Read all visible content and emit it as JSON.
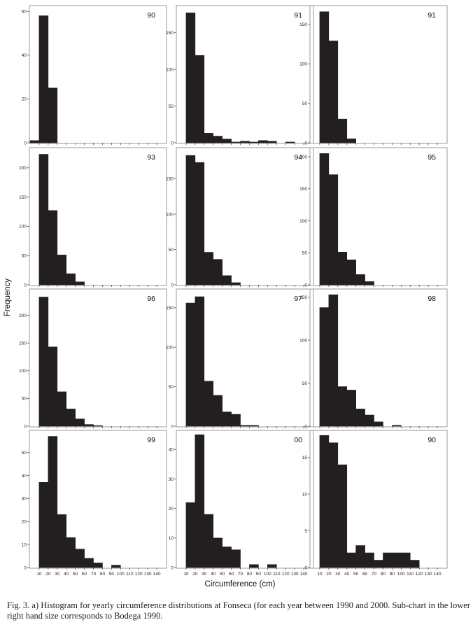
{
  "caption": "Fig. 3. a) Histogram for yearly circumference distributions at Fonseca (for each year between 1990 and 2000. Sub-chart in the lower right hand size corresponds to Bodega 1990.",
  "chart_data": {
    "type": "bar",
    "xlabel": "Circumference (cm)",
    "ylabel": "Frequency",
    "xlim": [
      0,
      150
    ],
    "bin_width": 10,
    "x_ticks": [
      10,
      20,
      30,
      40,
      50,
      60,
      70,
      80,
      90,
      100,
      110,
      120,
      130,
      140
    ],
    "grid": false,
    "panels": [
      {
        "label": "90",
        "ylim": [
          0,
          62
        ],
        "yticks": [
          0,
          20,
          40,
          60
        ],
        "bins": [
          [
            0,
            1
          ],
          [
            10,
            58
          ],
          [
            20,
            25
          ]
        ]
      },
      {
        "label": "91",
        "ylim": [
          0,
          185
        ],
        "yticks": [
          0,
          50,
          100,
          150
        ],
        "bins": [
          [
            10,
            177
          ],
          [
            20,
            119
          ],
          [
            30,
            13
          ],
          [
            40,
            9
          ],
          [
            50,
            5
          ],
          [
            60,
            1
          ],
          [
            70,
            2
          ],
          [
            80,
            1
          ],
          [
            90,
            3
          ],
          [
            100,
            2
          ],
          [
            110,
            0
          ],
          [
            120,
            1
          ]
        ]
      },
      {
        "label": "91",
        "ylim": [
          0,
          172
        ],
        "yticks": [
          0,
          50,
          100,
          150
        ],
        "bins": [
          [
            10,
            166
          ],
          [
            20,
            129
          ],
          [
            30,
            30
          ],
          [
            40,
            5
          ]
        ]
      },
      {
        "label": "93",
        "ylim": [
          0,
          232
        ],
        "yticks": [
          0,
          50,
          100,
          150,
          200
        ],
        "bins": [
          [
            10,
            223
          ],
          [
            20,
            127
          ],
          [
            30,
            51
          ],
          [
            40,
            19
          ],
          [
            50,
            5
          ]
        ]
      },
      {
        "label": "94",
        "ylim": [
          0,
          192
        ],
        "yticks": [
          0,
          50,
          100,
          150
        ],
        "bins": [
          [
            10,
            183
          ],
          [
            20,
            173
          ],
          [
            30,
            46
          ],
          [
            40,
            36
          ],
          [
            50,
            13
          ],
          [
            60,
            3
          ]
        ]
      },
      {
        "label": "95",
        "ylim": [
          0,
          212
        ],
        "yticks": [
          0,
          50,
          100,
          150,
          200
        ],
        "bins": [
          [
            10,
            205
          ],
          [
            20,
            172
          ],
          [
            30,
            51
          ],
          [
            40,
            39
          ],
          [
            50,
            16
          ],
          [
            60,
            5
          ]
        ]
      },
      {
        "label": "96",
        "ylim": [
          0,
          245
        ],
        "yticks": [
          0,
          50,
          100,
          150,
          200
        ],
        "bins": [
          [
            10,
            233
          ],
          [
            20,
            143
          ],
          [
            30,
            62
          ],
          [
            40,
            31
          ],
          [
            50,
            13
          ],
          [
            60,
            3
          ],
          [
            70,
            1
          ]
        ]
      },
      {
        "label": "97",
        "ylim": [
          0,
          172
        ],
        "yticks": [
          0,
          50,
          100,
          150
        ],
        "bins": [
          [
            10,
            156
          ],
          [
            20,
            164
          ],
          [
            30,
            57
          ],
          [
            40,
            39
          ],
          [
            50,
            18
          ],
          [
            60,
            15
          ],
          [
            70,
            1
          ],
          [
            80,
            1
          ]
        ]
      },
      {
        "label": "98",
        "ylim": [
          0,
          158
        ],
        "yticks": [
          0,
          50,
          100,
          150
        ],
        "bins": [
          [
            10,
            138
          ],
          [
            20,
            153
          ],
          [
            30,
            46
          ],
          [
            40,
            42
          ],
          [
            50,
            20
          ],
          [
            60,
            13
          ],
          [
            70,
            5
          ],
          [
            80,
            0
          ],
          [
            90,
            1
          ]
        ]
      },
      {
        "label": "99",
        "ylim": [
          0,
          59
        ],
        "yticks": [
          0,
          10,
          20,
          30,
          40,
          50
        ],
        "bins": [
          [
            10,
            37
          ],
          [
            20,
            57
          ],
          [
            30,
            23
          ],
          [
            40,
            13
          ],
          [
            50,
            8
          ],
          [
            60,
            4
          ],
          [
            70,
            2
          ],
          [
            80,
            0
          ],
          [
            90,
            1
          ]
        ]
      },
      {
        "label": "00",
        "ylim": [
          0,
          46
        ],
        "yticks": [
          0,
          10,
          20,
          30,
          40
        ],
        "bins": [
          [
            10,
            22
          ],
          [
            20,
            45
          ],
          [
            30,
            18
          ],
          [
            40,
            10
          ],
          [
            50,
            7
          ],
          [
            60,
            6
          ],
          [
            70,
            0
          ],
          [
            80,
            1
          ],
          [
            90,
            0
          ],
          [
            100,
            1
          ]
        ]
      },
      {
        "label": "90",
        "ylim": [
          0,
          18.5
        ],
        "yticks": [
          0,
          5,
          10,
          15
        ],
        "bins": [
          [
            10,
            18
          ],
          [
            20,
            17
          ],
          [
            30,
            14
          ],
          [
            40,
            2
          ],
          [
            50,
            3
          ],
          [
            60,
            2
          ],
          [
            70,
            1
          ],
          [
            80,
            2
          ],
          [
            90,
            2
          ],
          [
            100,
            2
          ],
          [
            110,
            1
          ]
        ]
      }
    ]
  }
}
